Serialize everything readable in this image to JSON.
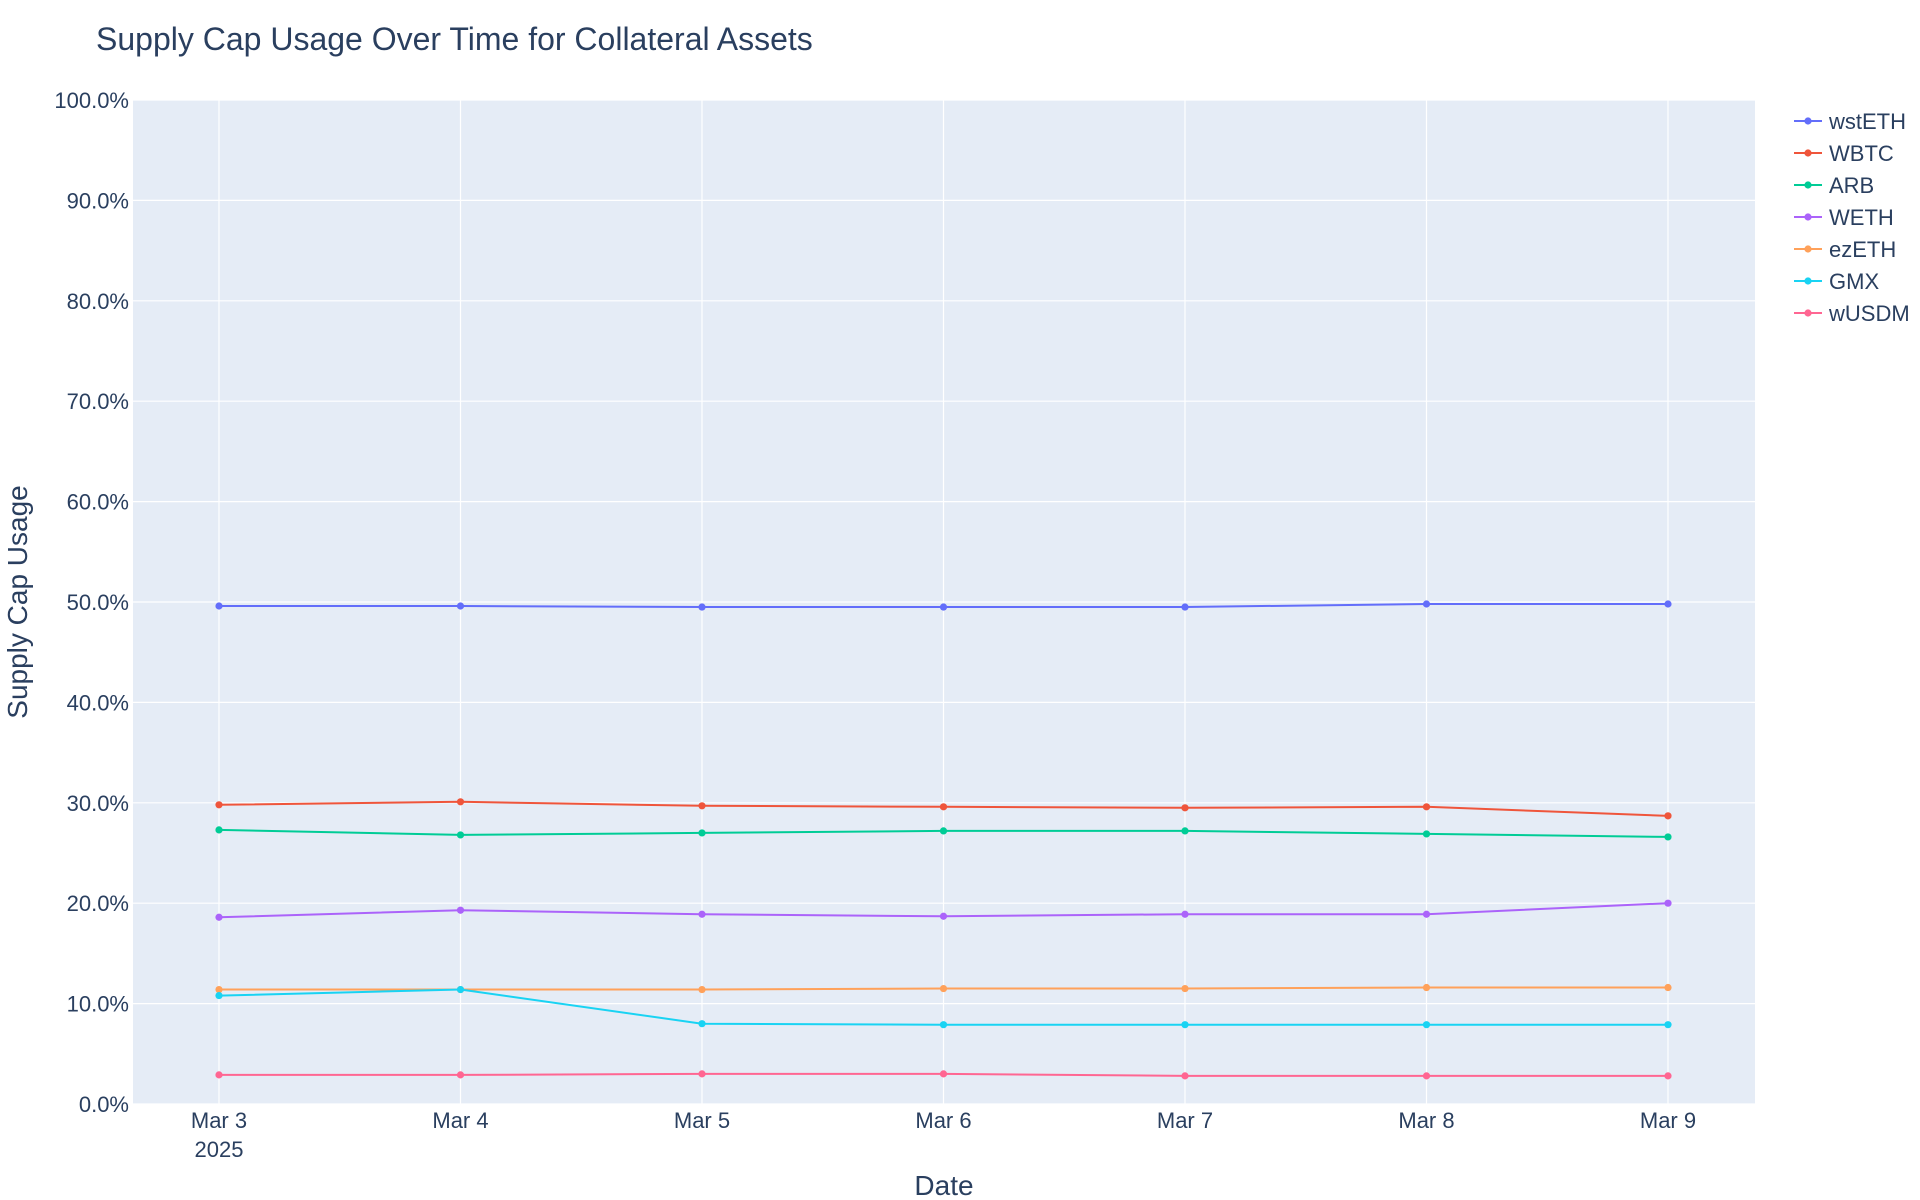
{
  "chart_data": {
    "type": "line",
    "title": "Supply Cap Usage Over Time for Collateral Assets",
    "xlabel": "Date",
    "ylabel": "Supply Cap Usage",
    "x": [
      "2025-03-03",
      "2025-03-04",
      "2025-03-05",
      "2025-03-06",
      "2025-03-07",
      "2025-03-08",
      "2025-03-09"
    ],
    "x_tick_labels": [
      "Mar 3",
      "Mar 4",
      "Mar 5",
      "Mar 6",
      "Mar 7",
      "Mar 8",
      "Mar 9"
    ],
    "x_tick_sublabel": "2025",
    "ylim": [
      0,
      100
    ],
    "y_ticks": [
      0,
      10,
      20,
      30,
      40,
      50,
      60,
      70,
      80,
      90,
      100
    ],
    "y_tick_labels": [
      "0.0%",
      "10.0%",
      "20.0%",
      "30.0%",
      "40.0%",
      "50.0%",
      "60.0%",
      "70.0%",
      "80.0%",
      "90.0%",
      "100.0%"
    ],
    "grid": true,
    "legend_position": "top-right",
    "plot_background": "#e5ecf6",
    "series": [
      {
        "name": "wstETH",
        "color": "#636efa",
        "values": [
          49.6,
          49.6,
          49.5,
          49.5,
          49.5,
          49.8,
          49.8
        ]
      },
      {
        "name": "WBTC",
        "color": "#ef553b",
        "values": [
          29.8,
          30.1,
          29.7,
          29.6,
          29.5,
          29.6,
          28.7
        ]
      },
      {
        "name": "ARB",
        "color": "#00cc96",
        "values": [
          27.3,
          26.8,
          27.0,
          27.2,
          27.2,
          26.9,
          26.6
        ]
      },
      {
        "name": "WETH",
        "color": "#ab63fa",
        "values": [
          18.6,
          19.3,
          18.9,
          18.7,
          18.9,
          18.9,
          20.0
        ]
      },
      {
        "name": "ezETH",
        "color": "#ffa15a",
        "values": [
          11.4,
          11.4,
          11.4,
          11.5,
          11.5,
          11.6,
          11.6
        ]
      },
      {
        "name": "GMX",
        "color": "#19d3f3",
        "values": [
          10.8,
          11.4,
          8.0,
          7.9,
          7.9,
          7.9,
          7.9
        ]
      },
      {
        "name": "wUSDM",
        "color": "#ff6692",
        "values": [
          2.9,
          2.9,
          3.0,
          3.0,
          2.8,
          2.8,
          2.8
        ]
      }
    ]
  }
}
